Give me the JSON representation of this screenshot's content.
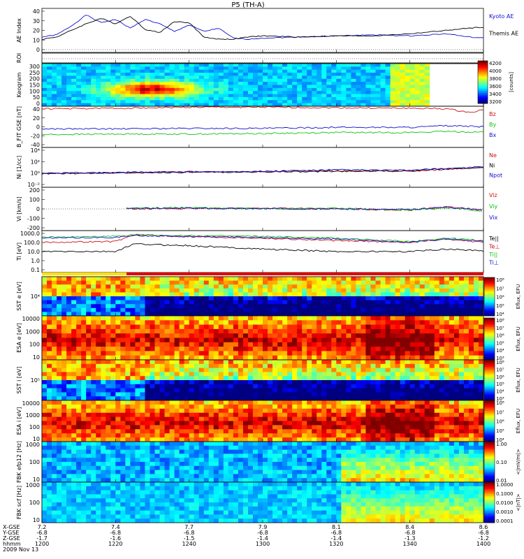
{
  "title": "P5 (TH-A)",
  "colors": {
    "blue": "#1010d0",
    "black": "#000000",
    "red": "#d01010",
    "green": "#10c010",
    "sidebar_yellow": "#ffe000",
    "sidebar_red": "#e00000"
  },
  "time_axis": {
    "tick_minutes": [
      0,
      20,
      40,
      60,
      80,
      100,
      120
    ],
    "rows": [
      {
        "label": "X-GSE",
        "values": [
          "7.2",
          "7.4",
          "7.7",
          "7.9",
          "8.1",
          "8.4",
          "8.6"
        ]
      },
      {
        "label": "Y-GSE",
        "values": [
          "-6.8",
          "-6.8",
          "-6.8",
          "-6.8",
          "-6.8",
          "-6.8",
          "-6.8"
        ]
      },
      {
        "label": "Z-GSE",
        "values": [
          "-1.7",
          "-1.6",
          "-1.5",
          "-1.4",
          "-1.4",
          "-1.3",
          "-1.2"
        ]
      },
      {
        "label": "hhmm",
        "values": [
          "1200",
          "1220",
          "1240",
          "1300",
          "1320",
          "1340",
          "1400"
        ]
      }
    ],
    "date": "2009 Nov 13"
  },
  "chart_data": [
    {
      "type": "line",
      "ylabel": "AE Index",
      "ylim": [
        0,
        40
      ],
      "ticks": [
        "0",
        "10",
        "20",
        "30",
        "40"
      ],
      "series": [
        {
          "name": "Kyoto AE",
          "color": "#1010d0",
          "x": [
            0,
            4,
            8,
            12,
            16,
            20,
            24,
            28,
            32,
            36,
            40,
            44,
            48,
            52,
            56,
            60,
            70,
            80,
            90,
            100,
            110,
            116,
            120
          ],
          "values": [
            14,
            16,
            24,
            34,
            27,
            30,
            22,
            30,
            26,
            19,
            25,
            19,
            22,
            13,
            12,
            13,
            14,
            15,
            16,
            15,
            17,
            14,
            13
          ]
        },
        {
          "name": "Themis AE",
          "color": "#000000",
          "x": [
            0,
            4,
            8,
            12,
            16,
            20,
            24,
            28,
            32,
            36,
            40,
            44,
            48,
            52,
            56,
            60,
            70,
            80,
            90,
            100,
            110,
            116,
            120
          ],
          "values": [
            12,
            14,
            20,
            26,
            31,
            26,
            33,
            21,
            18,
            28,
            27,
            14,
            12,
            12,
            14,
            15,
            14,
            15,
            15,
            17,
            20,
            22,
            23
          ]
        }
      ]
    },
    {
      "type": "line",
      "ylabel": "ROI",
      "ylim": [
        0,
        1
      ],
      "ticks": [],
      "series": []
    },
    {
      "type": "heatmap",
      "ylabel": "Keogram",
      "ylim": [
        0,
        300
      ],
      "ticks": [
        "0",
        "50",
        "100",
        "150",
        "200",
        "250",
        "300"
      ],
      "colorbar": {
        "label": "[counts]",
        "ticks": [
          "3200",
          "3400",
          "3600",
          "3800",
          "4000",
          "4200"
        ]
      }
    },
    {
      "type": "line",
      "ylabel": "B_FIT GSE [nT]",
      "ylim": [
        -40,
        40
      ],
      "ticks": [
        "-40",
        "-20",
        "0",
        "20",
        "40"
      ],
      "series": [
        {
          "name": "Bz",
          "color": "#d01010",
          "x": [
            0,
            20,
            40,
            60,
            80,
            100,
            110,
            116,
            120
          ],
          "values": [
            35,
            36,
            38,
            38,
            37,
            36,
            35,
            28,
            33
          ]
        },
        {
          "name": "By",
          "color": "#10c010",
          "x": [
            0,
            20,
            40,
            60,
            80,
            100,
            110,
            116,
            120
          ],
          "values": [
            -15,
            -14,
            -14,
            -13,
            -11,
            -11,
            -9,
            -10,
            -10
          ]
        },
        {
          "name": "Bx",
          "color": "#1010d0",
          "x": [
            0,
            20,
            40,
            60,
            80,
            100,
            110,
            116,
            120
          ],
          "values": [
            -4,
            -4,
            -3,
            -3,
            -1,
            -1,
            2,
            1,
            0
          ]
        }
      ]
    },
    {
      "type": "line",
      "ylabel": "Ni [1/cc]",
      "ylim": [
        -3,
        5
      ],
      "log": true,
      "ticks": [
        "10⁻²",
        "10⁰",
        "10²",
        "10⁴"
      ],
      "series": [
        {
          "name": "Ne",
          "color": "#d01010",
          "x": [
            0,
            20,
            40,
            60,
            80,
            100,
            110,
            120
          ],
          "values": [
            -0.2,
            -0.1,
            0.1,
            0.1,
            0.3,
            0.2,
            0.6,
            1.0
          ]
        },
        {
          "name": "Ni",
          "color": "#000000",
          "x": [
            0,
            20,
            40,
            60,
            80,
            100,
            110,
            120
          ],
          "values": [
            -0.3,
            -0.1,
            0.0,
            0.1,
            0.2,
            0.3,
            0.7,
            1.0
          ]
        },
        {
          "name": "Npot",
          "color": "#1010d0",
          "x": [
            0,
            20,
            40,
            60,
            80,
            100,
            110,
            120
          ],
          "values": [
            -0.2,
            0.0,
            0.1,
            0.2,
            0.5,
            0.4,
            0.8,
            1.1
          ]
        }
      ]
    },
    {
      "type": "line",
      "ylabel": "Vi [km/s]",
      "ylim": [
        -300,
        300
      ],
      "ticks": [
        "-200",
        "-100",
        "0",
        "100",
        "200"
      ],
      "series": [
        {
          "name": "Viz",
          "color": "#d01010",
          "x": [
            23,
            40,
            60,
            80,
            100,
            110,
            120
          ],
          "values": [
            0,
            5,
            10,
            0,
            -15,
            30,
            -20
          ]
        },
        {
          "name": "Viy",
          "color": "#10c010",
          "x": [
            23,
            40,
            60,
            80,
            100,
            110,
            120
          ],
          "values": [
            10,
            20,
            0,
            10,
            -20,
            20,
            -30
          ]
        },
        {
          "name": "Vix",
          "color": "#1010d0",
          "x": [
            23,
            40,
            60,
            80,
            100,
            110,
            120
          ],
          "values": [
            5,
            10,
            5,
            0,
            -10,
            25,
            -15
          ]
        }
      ]
    },
    {
      "type": "line",
      "ylabel": "Ti [eV]",
      "ylim": [
        -1.2,
        3.8
      ],
      "log": true,
      "ticks": [
        "0.1",
        "1.0",
        "10.0",
        "100.0",
        "1000.0"
      ],
      "series": [
        {
          "name": "Te||",
          "color": "#000000",
          "x": [
            0,
            20,
            25,
            40,
            60,
            80,
            100,
            110,
            120
          ],
          "values": [
            1.3,
            1.3,
            2.2,
            2.0,
            1.6,
            1.3,
            1.3,
            1.6,
            1.4
          ]
        },
        {
          "name": "Te⊥",
          "color": "#d01010",
          "x": [
            0,
            20,
            25,
            40,
            60,
            80,
            100,
            110,
            120
          ],
          "values": [
            2.4,
            2.5,
            3.3,
            3.1,
            2.9,
            2.6,
            2.4,
            2.8,
            2.4
          ]
        },
        {
          "name": "Ti||",
          "color": "#10c010",
          "x": [
            0,
            20,
            25,
            40,
            60,
            80,
            100,
            110,
            120
          ],
          "values": [
            3.0,
            3.1,
            3.3,
            3.2,
            3.1,
            2.9,
            2.5,
            2.9,
            2.6
          ]
        },
        {
          "name": "Ti⊥",
          "color": "#1010d0",
          "x": [
            0,
            20,
            25,
            40,
            60,
            80,
            100,
            110,
            120
          ],
          "values": [
            2.9,
            3.0,
            3.2,
            3.1,
            3.0,
            2.8,
            2.4,
            2.8,
            2.5
          ]
        }
      ]
    },
    {
      "type": "heatmap",
      "ylabel": "SST e [eV]",
      "ticks": [
        "10⁴"
      ],
      "colorbar": {
        "label": "Eflux, EFU",
        "ticks": [
          "10⁴",
          "10⁵",
          "10⁶",
          "10⁷",
          "10⁸"
        ]
      }
    },
    {
      "type": "heatmap",
      "ylabel": "ESA e [eV]",
      "ticks": [
        "10",
        "100",
        "1000",
        "10000"
      ],
      "colorbar": {
        "label": "Eflux, EFU",
        "ticks": [
          "10³",
          "10⁴",
          "10⁵",
          "10⁶",
          "10⁷",
          "10⁸"
        ]
      }
    },
    {
      "type": "heatmap",
      "ylabel": "SST i [eV]",
      "ticks": [
        "10⁵"
      ],
      "colorbar": {
        "label": "Eflux, EFU",
        "ticks": [
          "10³",
          "10⁴",
          "10⁵",
          "10⁶",
          "10⁷",
          "10⁸"
        ]
      }
    },
    {
      "type": "heatmap",
      "ylabel": "ESA i [eV]",
      "ticks": [
        "10",
        "100",
        "1000",
        "10000"
      ],
      "colorbar": {
        "label": "Eflux, EFU",
        "ticks": [
          "10⁴",
          "10⁵",
          "10⁶",
          "10⁷",
          "10⁸"
        ]
      }
    },
    {
      "type": "heatmap",
      "ylabel": "FBK efp12 [Hz]",
      "ticks": [
        "10",
        "100",
        "1000"
      ],
      "colorbar": {
        "label": "<|mV/m|>",
        "ticks": [
          "0.01",
          "0.10",
          "1.00"
        ]
      }
    },
    {
      "type": "heatmap",
      "ylabel": "FBK scf [Hz]",
      "ticks": [
        "10",
        "100",
        "1000"
      ],
      "colorbar": {
        "label": "<|nT|>",
        "ticks": [
          "0.0001",
          "0.0010",
          "0.0100",
          "0.1000",
          "1.0000"
        ]
      }
    }
  ]
}
